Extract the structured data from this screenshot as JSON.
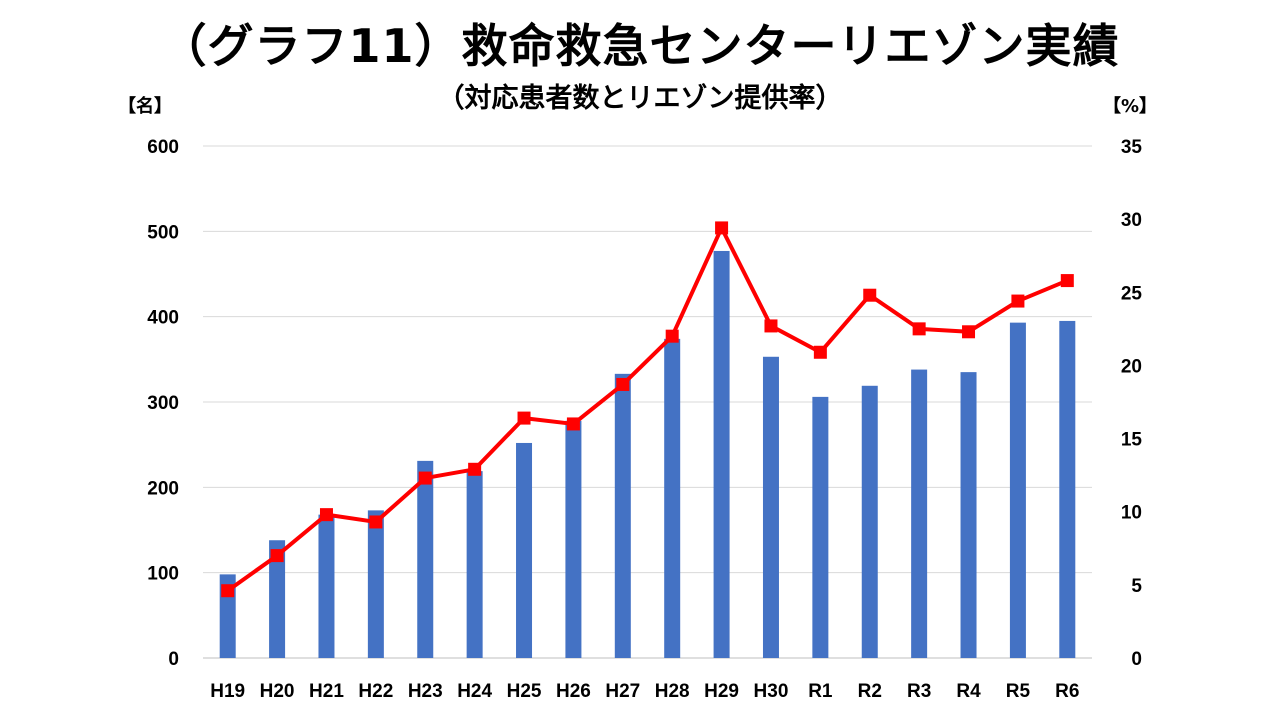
{
  "title": "（グラフ11）救命救急センターリエゾン実績",
  "subtitle": "（対応患者数とリエゾン提供率）",
  "y_left_unit": "【名】",
  "y_right_unit": "【%】",
  "colors": {
    "bar": "#4472C4",
    "line": "#FF0000",
    "grid": "#D9D9D9"
  },
  "chart_data": {
    "type": "bar",
    "categories": [
      "H19",
      "H20",
      "H21",
      "H22",
      "H23",
      "H24",
      "H25",
      "H26",
      "H27",
      "H28",
      "H29",
      "H30",
      "R1",
      "R2",
      "R3",
      "R4",
      "R5",
      "R6"
    ],
    "series": [
      {
        "type": "bar",
        "axis": "left",
        "values": [
          98,
          138,
          168,
          173,
          231,
          219,
          252,
          278,
          333,
          374,
          477,
          353,
          306,
          319,
          338,
          335,
          393,
          395
        ]
      },
      {
        "type": "line",
        "axis": "right",
        "marker": "square",
        "values": [
          4.6,
          7.0,
          9.8,
          9.3,
          12.3,
          12.9,
          16.4,
          16.0,
          18.7,
          22.0,
          29.4,
          22.7,
          20.9,
          24.8,
          22.5,
          22.3,
          24.4,
          25.8
        ]
      }
    ],
    "y_left": {
      "min": 0,
      "max": 600,
      "ticks": [
        0,
        100,
        200,
        300,
        400,
        500,
        600
      ]
    },
    "y_right": {
      "min": 0,
      "max": 35,
      "ticks": [
        0,
        5,
        10,
        15,
        20,
        25,
        30,
        35
      ]
    },
    "grid": true,
    "legend": "none"
  }
}
